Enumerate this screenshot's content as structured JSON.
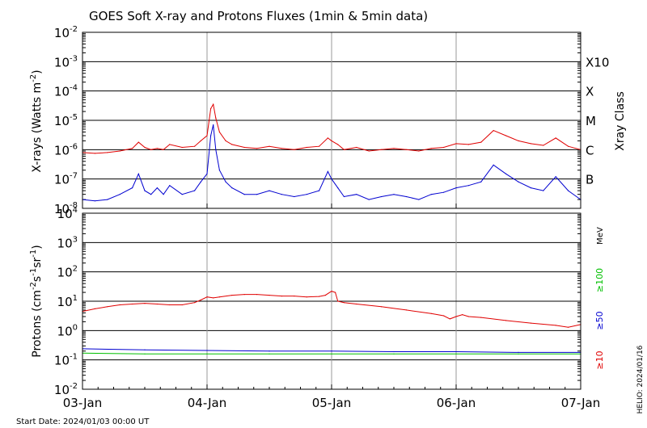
{
  "title": "GOES Soft X-ray and Protons Fluxes   (1min & 5min data)",
  "footer": {
    "start_date": "Start Date: 2024/01/03 00:00 UT",
    "credit": "HELIO: 2024/01/16"
  },
  "colors": {
    "red": "#e00000",
    "blue": "#0000d0",
    "green": "#00c000",
    "grid": "#000000",
    "day_line": "#999999"
  },
  "chart_data": [
    {
      "type": "line",
      "name": "xray-panel",
      "ylabel_parts": [
        "X-rays (Watts m",
        "-2",
        ")"
      ],
      "yscale": "log",
      "ylim": [
        1e-08,
        0.01
      ],
      "y_ticks": [
        {
          "base": "10",
          "exp": "-8"
        },
        {
          "base": "10",
          "exp": "-7"
        },
        {
          "base": "10",
          "exp": "-6"
        },
        {
          "base": "10",
          "exp": "-5"
        },
        {
          "base": "10",
          "exp": "-4"
        },
        {
          "base": "10",
          "exp": "-3"
        },
        {
          "base": "10",
          "exp": "-2"
        }
      ],
      "right_axis_title": "Xray Class",
      "xray_classes": [
        {
          "label": "B",
          "value": 1e-07
        },
        {
          "label": "C",
          "value": 1e-06
        },
        {
          "label": "M",
          "value": 1e-05
        },
        {
          "label": "X",
          "value": 0.0001
        },
        {
          "label": "X10",
          "value": 0.001
        }
      ],
      "series": [
        {
          "key": "long",
          "color": "#e00000",
          "x": [
            0,
            0.1,
            0.2,
            0.3,
            0.4,
            0.45,
            0.5,
            0.55,
            0.6,
            0.65,
            0.7,
            0.8,
            0.9,
            0.95,
            1.0,
            1.03,
            1.05,
            1.07,
            1.1,
            1.15,
            1.2,
            1.3,
            1.4,
            1.5,
            1.6,
            1.7,
            1.8,
            1.9,
            1.97,
            2.0,
            2.05,
            2.1,
            2.2,
            2.3,
            2.4,
            2.5,
            2.6,
            2.7,
            2.8,
            2.9,
            3.0,
            3.1,
            3.2,
            3.3,
            3.4,
            3.5,
            3.6,
            3.7,
            3.8,
            3.9,
            4.0
          ],
          "y": [
            8e-07,
            7.5e-07,
            8e-07,
            9e-07,
            1.1e-06,
            1.8e-06,
            1.2e-06,
            1e-06,
            1.1e-06,
            1e-06,
            1.5e-06,
            1.2e-06,
            1.3e-06,
            2e-06,
            3e-06,
            2.5e-05,
            3.5e-05,
            1.2e-05,
            4e-06,
            2e-06,
            1.5e-06,
            1.2e-06,
            1.1e-06,
            1.3e-06,
            1.1e-06,
            1e-06,
            1.2e-06,
            1.3e-06,
            2.5e-06,
            2e-06,
            1.5e-06,
            1e-06,
            1.2e-06,
            9e-07,
            1e-06,
            1.1e-06,
            1e-06,
            9e-07,
            1.1e-06,
            1.2e-06,
            1.6e-06,
            1.5e-06,
            1.8e-06,
            4.5e-06,
            3e-06,
            2e-06,
            1.6e-06,
            1.4e-06,
            2.5e-06,
            1.3e-06,
            1e-06
          ]
        },
        {
          "key": "short",
          "color": "#0000d0",
          "x": [
            0,
            0.1,
            0.2,
            0.3,
            0.4,
            0.45,
            0.5,
            0.55,
            0.6,
            0.65,
            0.7,
            0.8,
            0.9,
            0.95,
            1.0,
            1.03,
            1.05,
            1.07,
            1.1,
            1.15,
            1.2,
            1.3,
            1.4,
            1.5,
            1.6,
            1.7,
            1.8,
            1.9,
            1.97,
            2.0,
            2.05,
            2.1,
            2.2,
            2.3,
            2.4,
            2.5,
            2.6,
            2.7,
            2.8,
            2.9,
            3.0,
            3.1,
            3.2,
            3.3,
            3.4,
            3.5,
            3.6,
            3.7,
            3.8,
            3.9,
            4.0
          ],
          "y": [
            2e-08,
            1.8e-08,
            2e-08,
            3e-08,
            5e-08,
            1.5e-07,
            4e-08,
            3e-08,
            5e-08,
            3e-08,
            6e-08,
            3e-08,
            4e-08,
            8e-08,
            1.5e-07,
            3e-06,
            7e-06,
            1e-06,
            2e-07,
            8e-08,
            5e-08,
            3e-08,
            3e-08,
            4e-08,
            3e-08,
            2.5e-08,
            3e-08,
            4e-08,
            1.8e-07,
            1e-07,
            5e-08,
            2.5e-08,
            3e-08,
            2e-08,
            2.5e-08,
            3e-08,
            2.5e-08,
            2e-08,
            3e-08,
            3.5e-08,
            5e-08,
            6e-08,
            8e-08,
            3e-07,
            1.5e-07,
            8e-08,
            5e-08,
            4e-08,
            1.2e-07,
            4e-08,
            2e-08
          ]
        }
      ]
    },
    {
      "type": "line",
      "name": "proton-panel",
      "ylabel_parts": [
        "Protons (cm",
        "-2",
        "s",
        "-1",
        "sr",
        "-1",
        ")"
      ],
      "yscale": "log",
      "ylim": [
        0.01,
        10000
      ],
      "y_ticks": [
        {
          "base": "10",
          "exp": "-2"
        },
        {
          "base": "10",
          "exp": "-1"
        },
        {
          "base": "10",
          "exp": "0"
        },
        {
          "base": "10",
          "exp": "1"
        },
        {
          "base": "10",
          "exp": "2"
        },
        {
          "base": "10",
          "exp": "3"
        },
        {
          "base": "10",
          "exp": "4"
        }
      ],
      "y_tick_texts": [
        "10-2",
        "10-1",
        "1.0",
        "10",
        "102",
        "103",
        "104"
      ],
      "threshold": 10,
      "right_labels": {
        "unit": "MeV",
        "ge100": "≥100",
        "ge50": "≥50",
        "ge10": "≥10"
      },
      "series": [
        {
          "key": "ge10",
          "color": "#e00000",
          "x": [
            0,
            0.1,
            0.2,
            0.3,
            0.4,
            0.5,
            0.6,
            0.7,
            0.8,
            0.9,
            0.95,
            1.0,
            1.05,
            1.1,
            1.2,
            1.3,
            1.4,
            1.5,
            1.6,
            1.7,
            1.8,
            1.9,
            1.95,
            2.0,
            2.03,
            2.05,
            2.1,
            2.2,
            2.4,
            2.6,
            2.8,
            2.9,
            2.95,
            3.0,
            3.05,
            3.1,
            3.2,
            3.4,
            3.6,
            3.8,
            3.9,
            4.0
          ],
          "y": [
            4.5,
            5.5,
            6.5,
            7.5,
            8.0,
            8.5,
            8.0,
            7.5,
            7.5,
            9.0,
            11.0,
            14.0,
            13.0,
            14.0,
            16.0,
            17.0,
            17.0,
            16.0,
            15.0,
            15.0,
            14.0,
            14.5,
            16.0,
            22.0,
            20.0,
            10.0,
            9.0,
            8.0,
            6.5,
            5.0,
            3.8,
            3.2,
            2.5,
            3.0,
            3.5,
            3.0,
            2.8,
            2.2,
            1.8,
            1.5,
            1.3,
            1.6
          ]
        },
        {
          "key": "ge50",
          "color": "#0000d0",
          "x": [
            0,
            0.5,
            1.0,
            1.5,
            2.0,
            2.5,
            3.0,
            3.5,
            4.0
          ],
          "y": [
            0.24,
            0.22,
            0.21,
            0.2,
            0.2,
            0.19,
            0.19,
            0.18,
            0.18
          ]
        },
        {
          "key": "ge100",
          "color": "#00c000",
          "x": [
            0,
            0.5,
            1.0,
            1.5,
            2.0,
            2.5,
            3.0,
            3.5,
            4.0
          ],
          "y": [
            0.17,
            0.16,
            0.16,
            0.16,
            0.16,
            0.16,
            0.16,
            0.16,
            0.16
          ]
        }
      ]
    }
  ],
  "x_axis": {
    "range_days": [
      0,
      4
    ],
    "ticks": [
      {
        "day": 0,
        "label": "03-Jan"
      },
      {
        "day": 1,
        "label": "04-Jan"
      },
      {
        "day": 2,
        "label": "05-Jan"
      },
      {
        "day": 3,
        "label": "06-Jan"
      },
      {
        "day": 4,
        "label": "07-Jan"
      }
    ]
  }
}
